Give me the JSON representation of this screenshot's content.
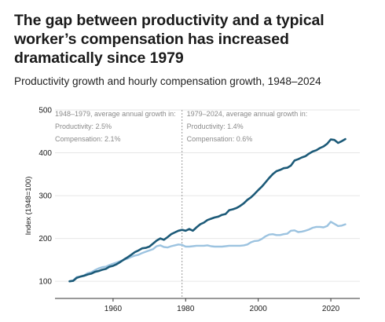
{
  "title": "The gap between productivity and a typical worker’s compensation has increased dramatically since 1979",
  "subtitle": "Productivity growth and hourly compensation growth, 1948–2024",
  "colors": {
    "productivity": "#1c5a78",
    "compensation": "#9cc3e0",
    "axis": "#333333",
    "annotation": "#8a8a8a",
    "divider": "#999999"
  },
  "chart_data": {
    "type": "line",
    "ylabel": "Index (1948=100)",
    "xlabel": "",
    "xlim": [
      1944,
      2028
    ],
    "ylim": [
      60,
      500
    ],
    "y_ticks": [
      "100",
      "200",
      "300",
      "400",
      "500"
    ],
    "x_ticks": [
      "1960",
      "1980",
      "2000",
      "2020"
    ],
    "grid": true,
    "divider_year": 1979,
    "annotations": [
      {
        "year": 1948,
        "lines": [
          "1948–1979, average annual growth in:",
          "Productivity: 2.5%",
          "Compensation: 2.1%"
        ]
      },
      {
        "year": 1979,
        "lines": [
          "1979–2024, average annual growth in:",
          "Productivity: 1.4%",
          "Compensation: 0.6%"
        ]
      }
    ],
    "series": [
      {
        "key": "productivity",
        "x": [
          1948,
          1949,
          1950,
          1951,
          1952,
          1953,
          1954,
          1955,
          1956,
          1957,
          1958,
          1959,
          1960,
          1961,
          1962,
          1963,
          1964,
          1965,
          1966,
          1967,
          1968,
          1969,
          1970,
          1971,
          1972,
          1973,
          1974,
          1975,
          1976,
          1977,
          1978,
          1979,
          1980,
          1981,
          1982,
          1983,
          1984,
          1985,
          1986,
          1987,
          1988,
          1989,
          1990,
          1991,
          1992,
          1993,
          1994,
          1995,
          1996,
          1997,
          1998,
          1999,
          2000,
          2001,
          2002,
          2003,
          2004,
          2005,
          2006,
          2007,
          2008,
          2009,
          2010,
          2011,
          2012,
          2013,
          2014,
          2015,
          2016,
          2017,
          2018,
          2019,
          2020,
          2021,
          2022,
          2023,
          2024
        ],
        "values": [
          100,
          101,
          108,
          111,
          113,
          116,
          118,
          122,
          124,
          127,
          129,
          134,
          136,
          140,
          145,
          151,
          156,
          162,
          168,
          172,
          177,
          178,
          181,
          188,
          195,
          200,
          197,
          203,
          210,
          214,
          218,
          220,
          218,
          222,
          218,
          226,
          233,
          237,
          243,
          246,
          249,
          251,
          255,
          257,
          266,
          268,
          271,
          276,
          282,
          290,
          296,
          304,
          313,
          321,
          331,
          341,
          350,
          357,
          360,
          364,
          365,
          370,
          382,
          385,
          389,
          392,
          398,
          403,
          406,
          411,
          415,
          421,
          431,
          430,
          423,
          427,
          432
        ]
      },
      {
        "key": "compensation",
        "x": [
          1948,
          1949,
          1950,
          1951,
          1952,
          1953,
          1954,
          1955,
          1956,
          1957,
          1958,
          1959,
          1960,
          1961,
          1962,
          1963,
          1964,
          1965,
          1966,
          1967,
          1968,
          1969,
          1970,
          1971,
          1972,
          1973,
          1974,
          1975,
          1976,
          1977,
          1978,
          1979,
          1980,
          1981,
          1982,
          1983,
          1984,
          1985,
          1986,
          1987,
          1988,
          1989,
          1990,
          1991,
          1992,
          1993,
          1994,
          1995,
          1996,
          1997,
          1998,
          1999,
          2000,
          2001,
          2002,
          2003,
          2004,
          2005,
          2006,
          2007,
          2008,
          2009,
          2010,
          2011,
          2012,
          2013,
          2014,
          2015,
          2016,
          2017,
          2018,
          2019,
          2020,
          2021,
          2022,
          2023,
          2024
        ],
        "values": [
          100,
          102,
          110,
          111,
          114,
          119,
          121,
          126,
          130,
          133,
          134,
          138,
          141,
          144,
          147,
          150,
          153,
          157,
          160,
          162,
          166,
          169,
          172,
          175,
          182,
          184,
          180,
          179,
          182,
          184,
          186,
          185,
          181,
          181,
          182,
          183,
          183,
          183,
          184,
          182,
          181,
          181,
          181,
          182,
          183,
          183,
          183,
          183,
          184,
          186,
          191,
          194,
          195,
          199,
          205,
          209,
          210,
          208,
          208,
          210,
          211,
          218,
          219,
          215,
          216,
          218,
          221,
          225,
          227,
          227,
          226,
          229,
          239,
          234,
          229,
          230,
          233
        ]
      }
    ]
  }
}
